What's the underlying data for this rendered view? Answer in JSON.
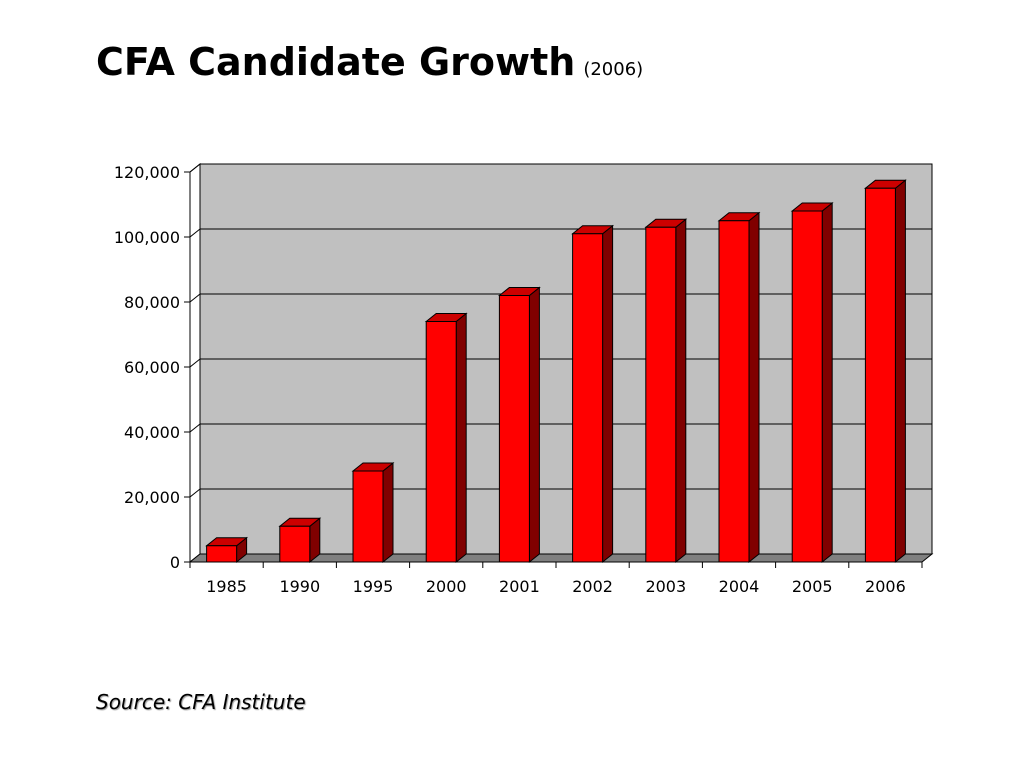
{
  "slide": {
    "title": "CFA Candidate Growth",
    "subtitle": "(2006)",
    "source": "Source: CFA Institute"
  },
  "chart_data": {
    "type": "bar",
    "title": "",
    "xlabel": "",
    "ylabel": "",
    "categories": [
      "1985",
      "1990",
      "1995",
      "2000",
      "2001",
      "2002",
      "2003",
      "2004",
      "2005",
      "2006"
    ],
    "values": [
      5000,
      11000,
      28000,
      74000,
      82000,
      101000,
      103000,
      105000,
      108000,
      115000
    ],
    "ylim": [
      0,
      120000
    ],
    "yticks": [
      0,
      20000,
      40000,
      60000,
      80000,
      100000,
      120000
    ],
    "ytick_labels": [
      "0",
      "20,000",
      "40,000",
      "60,000",
      "80,000",
      "100,000",
      "120,000"
    ],
    "grid": true,
    "legend": "none",
    "style": "3d-column",
    "colors": {
      "bar_front": "#ff0000",
      "bar_top": "#cc0000",
      "bar_side": "#800000",
      "plot_background": "#c0c0c0",
      "floor": "#808080",
      "gridline": "#000000"
    }
  }
}
